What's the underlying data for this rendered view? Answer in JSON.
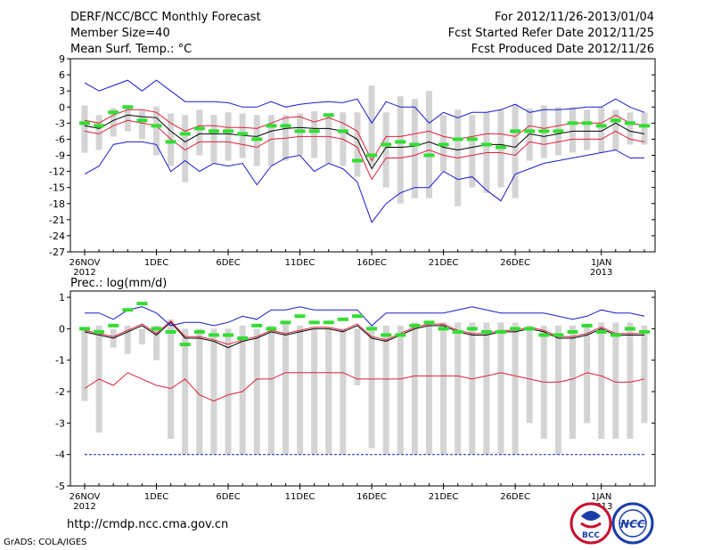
{
  "header": {
    "title": "DERF/NCC/BCC Monthly Forecast",
    "member_size": "Member Size=40",
    "variable": "Mean Surf. Temp.: °C",
    "forecast_period": "For 2012/11/26-2013/01/04",
    "started_refer": "Fcst Started Refer Date 2012/11/25",
    "produced": "Fcst Produced Date 2012/11/26"
  },
  "footer": {
    "url": "http://cmdp.ncc.cma.gov.cn",
    "grads": "GrADS: COLA/IGES"
  },
  "logos": {
    "bcc": "BCC",
    "ncc": "NCC"
  },
  "colors": {
    "box": "#d4d4d4",
    "ensemble_mean": "#000000",
    "spread": "#e0203a",
    "extreme": "#1a1ad0",
    "climatology": "#33dd33",
    "frame": "#000000"
  },
  "chart_data": [
    {
      "type": "box-whisker-line",
      "title": "Mean Surf. Temp.: °C",
      "ylabel": "°C",
      "ylim": [
        -27,
        9
      ],
      "yticks": [
        9,
        6,
        3,
        0,
        -3,
        -6,
        -9,
        -12,
        -15,
        -18,
        -21,
        -24,
        -27
      ],
      "x_labels": [
        {
          "day": 0,
          "label": "26NOV",
          "sub": "2012"
        },
        {
          "day": 5,
          "label": "1DEC"
        },
        {
          "day": 10,
          "label": "6DEC"
        },
        {
          "day": 15,
          "label": "11DEC"
        },
        {
          "day": 20,
          "label": "16DEC"
        },
        {
          "day": 25,
          "label": "21DEC"
        },
        {
          "day": 30,
          "label": "26DEC"
        },
        {
          "day": 36,
          "label": "1JAN",
          "sub": "2013"
        }
      ],
      "days": 40,
      "box_top": [
        0.3,
        -1.5,
        -0.2,
        -0.3,
        -0.6,
        0.1,
        -1.2,
        -1.5,
        -0.5,
        -1.5,
        -1.0,
        -1.2,
        -1.5,
        -1.5,
        -1.5,
        -1.2,
        -0.8,
        -1.2,
        -1.0,
        -1.0,
        4.0,
        -1.0,
        2.0,
        1.5,
        3.0,
        -1.5,
        -0.5,
        -1.5,
        -1.0,
        -0.5,
        0.5,
        -0.3,
        0.3,
        0.0,
        0.0,
        -0.5,
        0.0,
        -0.5,
        -1.0,
        -1.0
      ],
      "box_bottom": [
        -8.5,
        -8.0,
        -5.5,
        -4.5,
        -6.0,
        -9.0,
        -11.0,
        -14.0,
        -9.0,
        -10.5,
        -10.0,
        -9.5,
        -11.0,
        -11.0,
        -10.0,
        -9.0,
        -9.5,
        -10.5,
        -11.0,
        -13.0,
        -11.0,
        -15.0,
        -18.0,
        -17.0,
        -17.0,
        -12.0,
        -18.5,
        -15.0,
        -16.0,
        -15.0,
        -17.0,
        -10.0,
        -9.5,
        -9.0,
        -8.5,
        -8.0,
        -8.5,
        -8.0,
        -7.0,
        -7.0
      ],
      "series": [
        {
          "name": "Ensemble mean",
          "values": [
            -3.5,
            -4.0,
            -2.5,
            -1.5,
            -1.8,
            -2.0,
            -4.5,
            -6.5,
            -5.0,
            -5.0,
            -5.0,
            -5.3,
            -5.5,
            -4.5,
            -4.0,
            -3.8,
            -4.0,
            -4.0,
            -4.5,
            -6.0,
            -11.5,
            -7.5,
            -7.5,
            -7.3,
            -6.5,
            -7.5,
            -8.0,
            -7.5,
            -7.0,
            -7.0,
            -7.5,
            -5.0,
            -5.5,
            -5.0,
            -4.5,
            -4.5,
            -4.5,
            -3.0,
            -4.5,
            -5.0
          ]
        },
        {
          "name": "Upper spread",
          "values": [
            -2.5,
            -3.0,
            -1.5,
            -0.5,
            -0.5,
            -1.0,
            -3.0,
            -4.5,
            -3.5,
            -3.5,
            -3.8,
            -3.8,
            -4.0,
            -3.0,
            -2.0,
            -1.8,
            -2.8,
            -2.0,
            -3.0,
            -4.5,
            -10.0,
            -5.5,
            -5.5,
            -5.0,
            -4.5,
            -5.5,
            -6.0,
            -5.5,
            -5.0,
            -5.0,
            -5.5,
            -3.5,
            -4.0,
            -3.5,
            -3.0,
            -3.0,
            -3.0,
            -1.5,
            -3.0,
            -3.5
          ]
        },
        {
          "name": "Lower spread",
          "values": [
            -4.5,
            -5.0,
            -3.5,
            -2.5,
            -3.0,
            -3.5,
            -6.0,
            -8.0,
            -6.5,
            -6.5,
            -6.5,
            -7.0,
            -7.5,
            -6.0,
            -5.8,
            -5.5,
            -5.5,
            -5.5,
            -6.0,
            -7.5,
            -13.5,
            -9.5,
            -9.5,
            -9.0,
            -8.0,
            -9.0,
            -9.5,
            -9.0,
            -8.5,
            -8.5,
            -9.0,
            -6.5,
            -7.0,
            -6.5,
            -6.0,
            -6.0,
            -6.0,
            -4.5,
            -6.0,
            -6.5
          ]
        },
        {
          "name": "Maximum",
          "values": [
            4.5,
            3.0,
            4.0,
            5.0,
            3.0,
            5.0,
            3.0,
            1.0,
            1.0,
            1.0,
            0.8,
            0.0,
            0.0,
            1.0,
            0.0,
            0.5,
            0.8,
            1.0,
            0.8,
            1.5,
            -3.0,
            1.0,
            0.0,
            0.0,
            -3.0,
            -1.0,
            -2.0,
            -1.0,
            -1.0,
            -0.5,
            0.5,
            -1.0,
            -0.5,
            -0.5,
            -0.3,
            0.0,
            0.0,
            1.5,
            0.0,
            -1.0
          ]
        },
        {
          "name": "Minimum",
          "values": [
            -12.5,
            -11.0,
            -7.0,
            -6.5,
            -6.5,
            -7.0,
            -12.0,
            -10.0,
            -12.0,
            -10.5,
            -11.0,
            -10.5,
            -14.5,
            -11.0,
            -9.5,
            -9.0,
            -12.0,
            -10.5,
            -11.5,
            -14.0,
            -21.5,
            -18.0,
            -16.0,
            -15.0,
            -15.0,
            -12.0,
            -13.5,
            -13.0,
            -15.5,
            -17.5,
            -12.5,
            -11.5,
            -10.5,
            -10.0,
            -9.5,
            -9.0,
            -8.5,
            -8.0,
            -9.5,
            -9.5
          ]
        },
        {
          "name": "Climatology",
          "values": [
            -3.0,
            -3.5,
            -1.0,
            0.0,
            -2.5,
            -3.5,
            -6.5,
            -5.0,
            -4.0,
            -4.5,
            -4.5,
            -5.0,
            -6.0,
            -3.5,
            -3.5,
            -4.5,
            -4.5,
            -1.5,
            -4.5,
            -10.0,
            -9.0,
            -7.0,
            -6.5,
            -7.0,
            -9.0,
            -7.0,
            -6.0,
            -6.0,
            -7.0,
            -7.5,
            -4.5,
            -4.5,
            -4.5,
            -4.5,
            -3.0,
            -3.0,
            -3.5,
            -2.5,
            -3.0,
            -3.5
          ]
        }
      ]
    },
    {
      "type": "box-whisker-line",
      "title": "Prec.: log(mm/d)",
      "ylabel": "log(mm/d)",
      "ylim": [
        -5,
        1.2
      ],
      "yticks": [
        1,
        0,
        -1,
        -2,
        -3,
        -4,
        -5
      ],
      "x_labels": [
        {
          "day": 0,
          "label": "26NOV",
          "sub": "2012"
        },
        {
          "day": 5,
          "label": "1DEC"
        },
        {
          "day": 10,
          "label": "6DEC"
        },
        {
          "day": 15,
          "label": "11DEC"
        },
        {
          "day": 20,
          "label": "16DEC"
        },
        {
          "day": 25,
          "label": "21DEC"
        },
        {
          "day": 30,
          "label": "26DEC"
        },
        {
          "day": 36,
          "label": "1JAN",
          "sub": "2013"
        }
      ],
      "days": 40,
      "box_top": [
        0.0,
        0.1,
        0.0,
        0.1,
        0.0,
        0.1,
        0.3,
        0.0,
        0.0,
        0.0,
        0.0,
        0.1,
        0.0,
        0.1,
        0.2,
        0.1,
        0.0,
        0.0,
        0.0,
        0.0,
        0.1,
        0.1,
        0.1,
        0.2,
        0.2,
        0.2,
        0.2,
        0.2,
        0.2,
        0.2,
        0.2,
        0.1,
        0.1,
        0.1,
        0.1,
        0.1,
        0.2,
        0.2,
        0.2,
        0.1
      ],
      "box_bottom": [
        -2.3,
        -3.3,
        -0.6,
        -0.8,
        -0.5,
        -1.0,
        -3.5,
        -4.0,
        -4.0,
        -4.0,
        -4.0,
        -4.0,
        -4.0,
        -4.0,
        -4.0,
        -4.0,
        -4.0,
        -4.0,
        -4.0,
        -1.8,
        -3.8,
        -4.0,
        -4.0,
        -4.0,
        -4.0,
        -4.0,
        -4.0,
        -4.0,
        -4.0,
        -4.0,
        -4.0,
        -3.0,
        -3.5,
        -4.0,
        -3.5,
        -3.0,
        -3.5,
        -3.5,
        -3.5,
        -3.0
      ],
      "series": [
        {
          "name": "Ensemble mean",
          "values": [
            -0.1,
            -0.2,
            -0.3,
            -0.1,
            0.1,
            -0.2,
            0.2,
            -0.3,
            -0.3,
            -0.4,
            -0.6,
            -0.4,
            -0.3,
            -0.1,
            -0.2,
            -0.1,
            0.0,
            0.0,
            -0.1,
            0.1,
            -0.3,
            -0.4,
            -0.2,
            0.0,
            0.1,
            0.1,
            -0.1,
            -0.2,
            -0.2,
            -0.1,
            -0.1,
            0.0,
            -0.1,
            -0.3,
            -0.3,
            -0.2,
            0.0,
            -0.2,
            -0.2,
            -0.2
          ]
        },
        {
          "name": "Upper spread",
          "values": [
            -0.05,
            -0.15,
            -0.25,
            -0.05,
            0.15,
            -0.15,
            0.25,
            -0.25,
            -0.25,
            -0.35,
            -0.5,
            -0.35,
            -0.25,
            -0.05,
            -0.15,
            -0.05,
            0.05,
            0.05,
            -0.05,
            0.15,
            -0.25,
            -0.35,
            -0.15,
            0.05,
            0.15,
            0.15,
            -0.05,
            -0.15,
            -0.15,
            -0.05,
            -0.05,
            0.05,
            -0.05,
            -0.25,
            -0.25,
            -0.15,
            0.05,
            -0.15,
            -0.15,
            -0.15
          ]
        },
        {
          "name": "Lower spread",
          "values": [
            -1.9,
            -1.6,
            -1.8,
            -1.4,
            -1.6,
            -1.8,
            -1.9,
            -1.6,
            -2.1,
            -2.3,
            -2.1,
            -2.0,
            -1.6,
            -1.6,
            -1.4,
            -1.4,
            -1.4,
            -1.4,
            -1.4,
            -1.6,
            -1.6,
            -1.6,
            -1.6,
            -1.5,
            -1.5,
            -1.5,
            -1.5,
            -1.6,
            -1.5,
            -1.4,
            -1.5,
            -1.6,
            -1.7,
            -1.7,
            -1.6,
            -1.4,
            -1.5,
            -1.7,
            -1.7,
            -1.6
          ]
        },
        {
          "name": "Maximum",
          "values": [
            0.5,
            0.5,
            0.3,
            0.6,
            0.7,
            0.5,
            0.1,
            0.2,
            0.2,
            0.1,
            0.2,
            0.4,
            0.3,
            0.6,
            0.6,
            0.7,
            0.6,
            0.6,
            0.6,
            0.6,
            0.1,
            0.5,
            0.5,
            0.5,
            0.5,
            0.5,
            0.6,
            0.7,
            0.6,
            0.5,
            0.5,
            0.5,
            0.5,
            0.4,
            0.3,
            0.4,
            0.6,
            0.5,
            0.5,
            0.4
          ]
        },
        {
          "name": "Minimum",
          "values": [
            -4.0,
            -4.0,
            -4.0,
            -4.0,
            -4.0,
            -4.0,
            -4.0,
            -4.0,
            -4.0,
            -4.0,
            -4.0,
            -4.0,
            -4.0,
            -4.0,
            -4.0,
            -4.0,
            -4.0,
            -4.0,
            -4.0,
            -4.0,
            -4.0,
            -4.0,
            -4.0,
            -4.0,
            -4.0,
            -4.0,
            -4.0,
            -4.0,
            -4.0,
            -4.0,
            -4.0,
            -4.0,
            -4.0,
            -4.0,
            -4.0,
            -4.0,
            -4.0,
            -4.0,
            -4.0,
            -4.0
          ]
        },
        {
          "name": "Climatology",
          "values": [
            0.0,
            -0.1,
            0.1,
            0.6,
            0.8,
            0.0,
            -0.1,
            -0.5,
            -0.1,
            -0.2,
            -0.2,
            -0.3,
            0.1,
            0.0,
            0.2,
            0.4,
            0.2,
            0.2,
            0.3,
            0.4,
            0.0,
            -0.2,
            -0.2,
            0.1,
            0.2,
            0.0,
            -0.1,
            0.0,
            -0.1,
            -0.1,
            0.0,
            0.0,
            -0.2,
            -0.2,
            -0.1,
            0.1,
            -0.1,
            -0.2,
            0.0,
            -0.1
          ]
        }
      ]
    }
  ]
}
